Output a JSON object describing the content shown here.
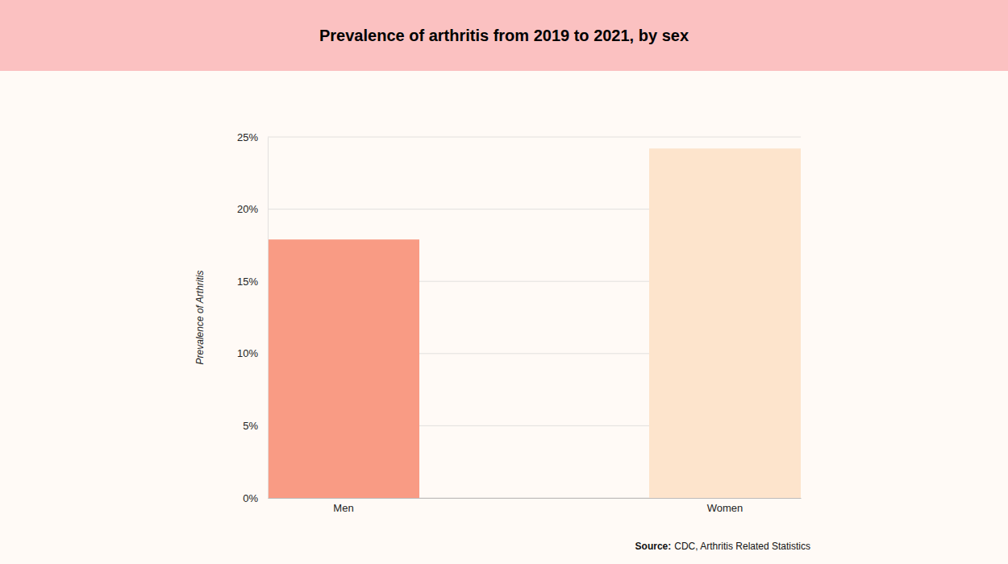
{
  "chart_data": {
    "type": "bar",
    "title": "Prevalence of arthritis from 2019 to 2021, by sex",
    "y_label": "Prevalence of Arthritis",
    "categories": [
      "Men",
      "Women"
    ],
    "values": [
      17.9,
      24.2
    ],
    "colors": [
      "#f99b84",
      "#fde4cc"
    ],
    "ylim": [
      0,
      25
    ],
    "yticks": [
      {
        "value": 0,
        "label": "0%"
      },
      {
        "value": 5,
        "label": "5%"
      },
      {
        "value": 10,
        "label": "10%"
      },
      {
        "value": 15,
        "label": "15%"
      },
      {
        "value": 20,
        "label": "20%"
      },
      {
        "value": 25,
        "label": "25%"
      }
    ],
    "grid": true,
    "source": {
      "label": "Source:",
      "text": "CDC, Arthritis Related Statistics"
    }
  }
}
